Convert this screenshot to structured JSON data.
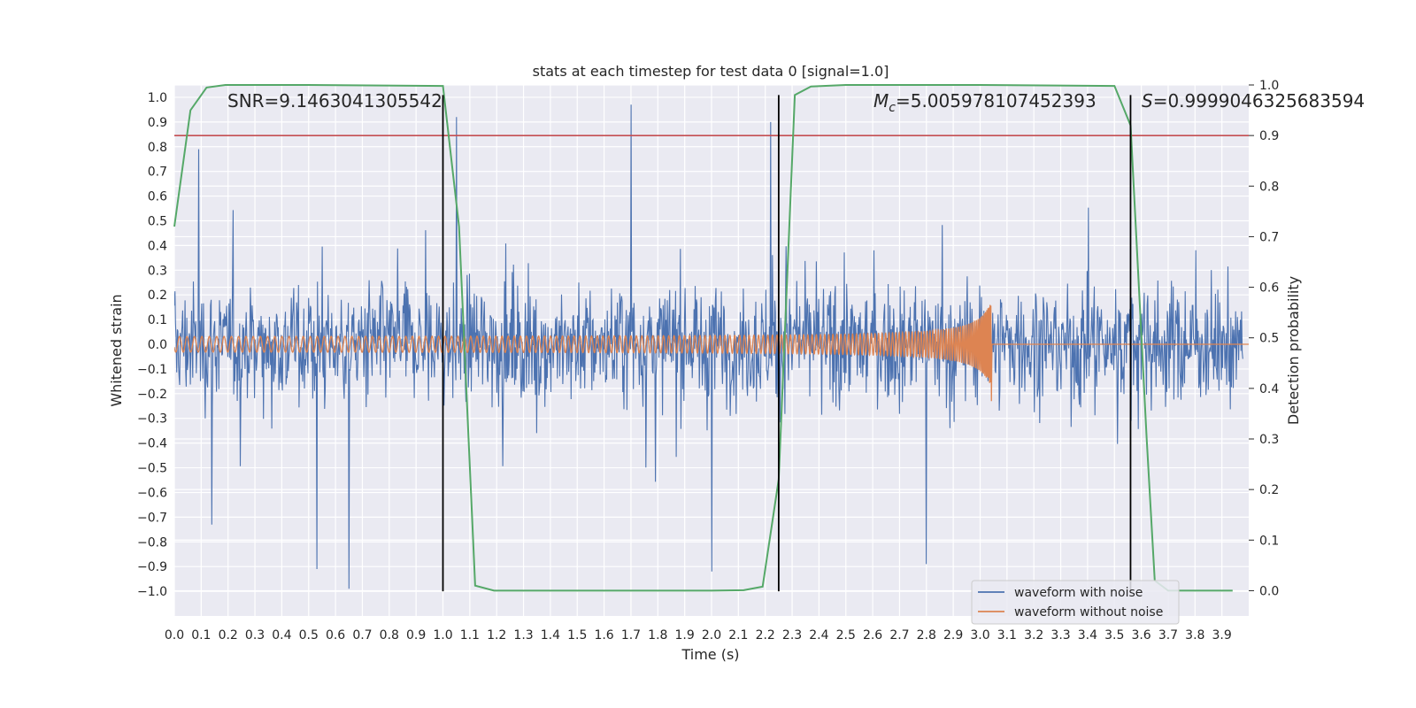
{
  "chart_data": {
    "type": "line",
    "title": "stats at each timestep for test data 0 [signal=1.0]",
    "xlabel": "Time (s)",
    "ylabel": "Whitened strain",
    "y2label": "Detection probability",
    "xlim": [
      0.0,
      4.0
    ],
    "ylim": [
      -1.1,
      1.05
    ],
    "y2lim": [
      -0.05,
      1.0
    ],
    "xticks": [
      "0.0",
      "0.1",
      "0.2",
      "0.3",
      "0.4",
      "0.5",
      "0.6",
      "0.7",
      "0.8",
      "0.9",
      "1.0",
      "1.1",
      "1.2",
      "1.3",
      "1.4",
      "1.5",
      "1.6",
      "1.7",
      "1.8",
      "1.9",
      "2.0",
      "2.1",
      "2.2",
      "2.3",
      "2.4",
      "2.5",
      "2.6",
      "2.7",
      "2.8",
      "2.9",
      "3.0",
      "3.1",
      "3.2",
      "3.3",
      "3.4",
      "3.5",
      "3.6",
      "3.7",
      "3.8",
      "3.9"
    ],
    "yticks": [
      "1.0",
      "0.9",
      "0.8",
      "0.7",
      "0.6",
      "0.5",
      "0.4",
      "0.3",
      "0.2",
      "0.1",
      "0.0",
      "−0.1",
      "−0.2",
      "−0.3",
      "−0.4",
      "−0.5",
      "−0.6",
      "−0.7",
      "−0.8",
      "−0.9",
      "−1.0"
    ],
    "y2ticks": [
      "1.0",
      "0.9",
      "0.8",
      "0.7",
      "0.6",
      "0.5",
      "0.4",
      "0.3",
      "0.2",
      "0.1",
      "0.0"
    ],
    "grid": true,
    "legend_position": "bottom-right",
    "colors": {
      "background": "#eaeaf2",
      "grid": "#ffffff",
      "noisy": "#4c72b0",
      "clean": "#dd8452",
      "probability": "#55a868",
      "threshold": "#c44e52",
      "event_lines": "#000000"
    },
    "series": [
      {
        "name": "waveform with noise",
        "axis": "left",
        "description_values": "dense noisy whitened strain between about -1.0 and 1.0",
        "peaks": [
          {
            "x": 0.09,
            "y": 0.79
          },
          {
            "x": 0.14,
            "y": -0.73
          },
          {
            "x": 0.53,
            "y": -0.91
          },
          {
            "x": 0.65,
            "y": -0.99
          },
          {
            "x": 1.05,
            "y": 0.92
          },
          {
            "x": 1.7,
            "y": 0.97
          },
          {
            "x": 2.0,
            "y": -0.92
          },
          {
            "x": 2.22,
            "y": 0.9
          },
          {
            "x": 2.8,
            "y": -0.89
          }
        ]
      },
      {
        "name": "waveform without noise",
        "axis": "left",
        "chirp": {
          "start": 0.0,
          "merger": 3.04,
          "amp_start": 0.03,
          "amp_merger": 0.17,
          "ringdown_min": -0.23
        }
      },
      {
        "name": "detection probability",
        "axis": "right",
        "x": [
          0.0,
          0.06,
          0.12,
          0.19,
          0.25,
          0.31,
          0.5,
          1.0,
          1.06,
          1.12,
          1.19,
          1.5,
          2.0,
          2.12,
          2.19,
          2.25,
          2.31,
          2.37,
          2.5,
          3.0,
          3.5,
          3.56,
          3.62,
          3.65,
          3.7,
          3.94
        ],
        "y": [
          0.72,
          0.95,
          0.995,
          1.0,
          1.0,
          1.0,
          1.0,
          0.998,
          0.72,
          0.01,
          0.0,
          0.0,
          0.0,
          0.001,
          0.008,
          0.22,
          0.98,
          0.997,
          1.0,
          1.0,
          0.998,
          0.92,
          0.3,
          0.02,
          0.0,
          0.0
        ]
      }
    ],
    "threshold": {
      "axis": "right",
      "value": 0.9
    },
    "event_lines": [
      {
        "x": 1.0,
        "ymin": -1.0,
        "ymax": 0.98
      },
      {
        "x": 2.25,
        "ymin": -1.0,
        "ymax": 0.98
      },
      {
        "x": 3.56,
        "ymin": -1.0,
        "ymax": 0.98
      }
    ],
    "annotations": {
      "snr": "SNR=9.1463041305542",
      "mc_symbol": "M",
      "mc_sub": "c",
      "mc_value": "=5.005978107452393",
      "s_symbol": "S",
      "s_value": "=0.9999046325683594"
    }
  }
}
